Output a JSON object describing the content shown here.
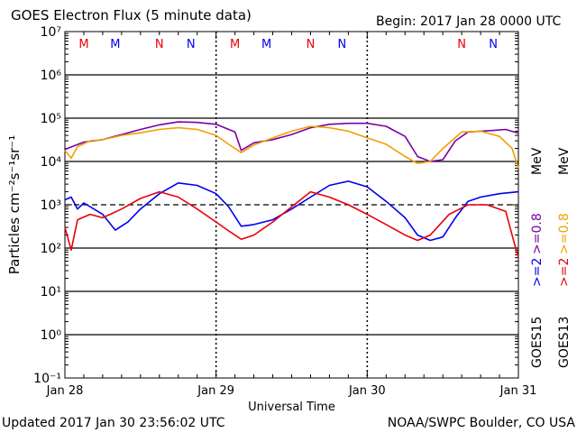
{
  "header": {
    "title": "GOES Electron Flux (5 minute data)",
    "begin": "Begin: 2017 Jan 28 0000 UTC"
  },
  "footer": {
    "updated": "Updated 2017 Jan 30 23:56:02 UTC",
    "source": "NOAA/SWPC Boulder, CO USA"
  },
  "chart_data": {
    "type": "line",
    "title": "GOES Electron Flux (5 minute data)",
    "xlabel": "Universal Time",
    "ylabel": "Particles cm⁻²s⁻¹sr⁻¹",
    "yscale": "log",
    "ylim": [
      0.1,
      10000000
    ],
    "y_ticks": [
      {
        "value": 10000000,
        "label": "10⁷"
      },
      {
        "value": 1000000,
        "label": "10⁶"
      },
      {
        "value": 100000,
        "label": "10⁵"
      },
      {
        "value": 10000,
        "label": "10⁴"
      },
      {
        "value": 1000,
        "label": "10³"
      },
      {
        "value": 100,
        "label": "10²"
      },
      {
        "value": 10,
        "label": "10¹"
      },
      {
        "value": 1,
        "label": "10⁰"
      },
      {
        "value": 0.1,
        "label": "10⁻¹"
      }
    ],
    "xlim": [
      "2017-01-28 00:00",
      "2017-01-31 00:00"
    ],
    "x_ticks": [
      "Jan 28",
      "Jan 29",
      "Jan 30",
      "Jan 31"
    ],
    "hlines": [
      {
        "value": 100000,
        "style": "solid"
      },
      {
        "value": 10000,
        "style": "solid"
      },
      {
        "value": 1000,
        "style": "dashed"
      },
      {
        "value": 100,
        "style": "solid"
      },
      {
        "value": 10,
        "style": "solid"
      },
      {
        "value": 1,
        "style": "solid"
      },
      {
        "value": 1000000,
        "style": "solid"
      }
    ],
    "grid": "dotted vertical at day boundaries",
    "markers": [
      {
        "label": "M",
        "time": "2017-01-28 03:00",
        "color": "#e8000b"
      },
      {
        "label": "M",
        "time": "2017-01-28 08:00",
        "color": "#0000ee"
      },
      {
        "label": "N",
        "time": "2017-01-28 15:00",
        "color": "#e8000b"
      },
      {
        "label": "N",
        "time": "2017-01-28 20:00",
        "color": "#0000ee"
      },
      {
        "label": "M",
        "time": "2017-01-29 03:00",
        "color": "#e8000b"
      },
      {
        "label": "M",
        "time": "2017-01-29 08:00",
        "color": "#0000ee"
      },
      {
        "label": "N",
        "time": "2017-01-29 15:00",
        "color": "#e8000b"
      },
      {
        "label": "N",
        "time": "2017-01-29 20:00",
        "color": "#0000ee"
      },
      {
        "label": "N",
        "time": "2017-01-30 15:00",
        "color": "#e8000b"
      },
      {
        "label": "N",
        "time": "2017-01-30 20:00",
        "color": "#0000ee"
      }
    ],
    "legend": {
      "placement": "right",
      "energy_unit": "MeV",
      "groups": [
        {
          "satellite": "GOES15",
          "color": "#000000",
          "items": [
            {
              "text": ">=2",
              "color": "#0000ee"
            },
            {
              "text": ">=0.8",
              "color": "#7a00a8"
            }
          ]
        },
        {
          "satellite": "GOES13",
          "color": "#000000",
          "items": [
            {
              "text": ">=2",
              "color": "#e8000b"
            },
            {
              "text": ">=0.8",
              "color": "#f0a000"
            }
          ]
        }
      ]
    },
    "series": [
      {
        "name": "GOES15 >=0.8 MeV",
        "color": "#7a00a8",
        "points": [
          [
            "2017-01-28 00:00",
            19000
          ],
          [
            "2017-01-28 03:00",
            28000
          ],
          [
            "2017-01-28 06:00",
            32000
          ],
          [
            "2017-01-28 09:00",
            42000
          ],
          [
            "2017-01-28 12:00",
            55000
          ],
          [
            "2017-01-28 15:00",
            70000
          ],
          [
            "2017-01-28 18:00",
            82000
          ],
          [
            "2017-01-28 21:00",
            80000
          ],
          [
            "2017-01-29 00:00",
            72000
          ],
          [
            "2017-01-29 03:00",
            48000
          ],
          [
            "2017-01-29 04:00",
            18000
          ],
          [
            "2017-01-29 06:00",
            27000
          ],
          [
            "2017-01-29 09:00",
            32000
          ],
          [
            "2017-01-29 12:00",
            42000
          ],
          [
            "2017-01-29 15:00",
            60000
          ],
          [
            "2017-01-29 18:00",
            72000
          ],
          [
            "2017-01-29 21:00",
            76000
          ],
          [
            "2017-01-30 00:00",
            76000
          ],
          [
            "2017-01-30 03:00",
            65000
          ],
          [
            "2017-01-30 06:00",
            38000
          ],
          [
            "2017-01-30 08:00",
            13000
          ],
          [
            "2017-01-30 10:00",
            10000
          ],
          [
            "2017-01-30 12:00",
            11000
          ],
          [
            "2017-01-30 14:00",
            30000
          ],
          [
            "2017-01-30 16:00",
            48000
          ],
          [
            "2017-01-30 18:00",
            50000
          ],
          [
            "2017-01-30 20:00",
            52000
          ],
          [
            "2017-01-30 22:00",
            55000
          ],
          [
            "2017-01-31 00:00",
            45000
          ]
        ]
      },
      {
        "name": "GOES13 >=0.8 MeV",
        "color": "#f0a000",
        "points": [
          [
            "2017-01-28 00:00",
            18000
          ],
          [
            "2017-01-28 01:00",
            12000
          ],
          [
            "2017-01-28 02:00",
            22000
          ],
          [
            "2017-01-28 04:00",
            30000
          ],
          [
            "2017-01-28 06:00",
            32000
          ],
          [
            "2017-01-28 09:00",
            40000
          ],
          [
            "2017-01-28 12:00",
            46000
          ],
          [
            "2017-01-28 15:00",
            55000
          ],
          [
            "2017-01-28 18:00",
            60000
          ],
          [
            "2017-01-28 21:00",
            55000
          ],
          [
            "2017-01-29 00:00",
            40000
          ],
          [
            "2017-01-29 02:00",
            25000
          ],
          [
            "2017-01-29 04:00",
            16000
          ],
          [
            "2017-01-29 06:00",
            24000
          ],
          [
            "2017-01-29 09:00",
            35000
          ],
          [
            "2017-01-29 12:00",
            50000
          ],
          [
            "2017-01-29 15:00",
            65000
          ],
          [
            "2017-01-29 18:00",
            60000
          ],
          [
            "2017-01-29 21:00",
            50000
          ],
          [
            "2017-01-30 00:00",
            35000
          ],
          [
            "2017-01-30 03:00",
            25000
          ],
          [
            "2017-01-30 06:00",
            13000
          ],
          [
            "2017-01-30 08:00",
            9000
          ],
          [
            "2017-01-30 10:00",
            10000
          ],
          [
            "2017-01-30 12:00",
            20000
          ],
          [
            "2017-01-30 15:00",
            48000
          ],
          [
            "2017-01-30 18:00",
            50000
          ],
          [
            "2017-01-30 21:00",
            38000
          ],
          [
            "2017-01-30 23:00",
            20000
          ],
          [
            "2017-01-31 00:00",
            7000
          ]
        ]
      },
      {
        "name": "GOES15 >=2 MeV",
        "color": "#0000ee",
        "points": [
          [
            "2017-01-28 00:00",
            1300
          ],
          [
            "2017-01-28 01:00",
            1500
          ],
          [
            "2017-01-28 02:00",
            800
          ],
          [
            "2017-01-28 03:00",
            1100
          ],
          [
            "2017-01-28 06:00",
            600
          ],
          [
            "2017-01-28 08:00",
            260
          ],
          [
            "2017-01-28 10:00",
            400
          ],
          [
            "2017-01-28 12:00",
            800
          ],
          [
            "2017-01-28 15:00",
            1800
          ],
          [
            "2017-01-28 18:00",
            3200
          ],
          [
            "2017-01-28 21:00",
            2800
          ],
          [
            "2017-01-29 00:00",
            1800
          ],
          [
            "2017-01-29 02:00",
            900
          ],
          [
            "2017-01-29 04:00",
            320
          ],
          [
            "2017-01-29 06:00",
            350
          ],
          [
            "2017-01-29 09:00",
            450
          ],
          [
            "2017-01-29 12:00",
            800
          ],
          [
            "2017-01-29 15:00",
            1500
          ],
          [
            "2017-01-29 18:00",
            2800
          ],
          [
            "2017-01-29 21:00",
            3500
          ],
          [
            "2017-01-30 00:00",
            2600
          ],
          [
            "2017-01-30 03:00",
            1200
          ],
          [
            "2017-01-30 06:00",
            500
          ],
          [
            "2017-01-30 08:00",
            200
          ],
          [
            "2017-01-30 10:00",
            150
          ],
          [
            "2017-01-30 12:00",
            180
          ],
          [
            "2017-01-30 14:00",
            500
          ],
          [
            "2017-01-30 16:00",
            1200
          ],
          [
            "2017-01-30 18:00",
            1500
          ],
          [
            "2017-01-30 21:00",
            1800
          ],
          [
            "2017-01-31 00:00",
            2000
          ]
        ]
      },
      {
        "name": "GOES13 >=2 MeV",
        "color": "#e8000b",
        "points": [
          [
            "2017-01-28 00:00",
            300
          ],
          [
            "2017-01-28 01:00",
            90
          ],
          [
            "2017-01-28 02:00",
            450
          ],
          [
            "2017-01-28 04:00",
            600
          ],
          [
            "2017-01-28 06:00",
            500
          ],
          [
            "2017-01-28 09:00",
            800
          ],
          [
            "2017-01-28 12:00",
            1400
          ],
          [
            "2017-01-28 15:00",
            2000
          ],
          [
            "2017-01-28 18:00",
            1500
          ],
          [
            "2017-01-28 21:00",
            800
          ],
          [
            "2017-01-29 00:00",
            400
          ],
          [
            "2017-01-29 02:00",
            250
          ],
          [
            "2017-01-29 04:00",
            160
          ],
          [
            "2017-01-29 06:00",
            200
          ],
          [
            "2017-01-29 09:00",
            400
          ],
          [
            "2017-01-29 12:00",
            900
          ],
          [
            "2017-01-29 15:00",
            2000
          ],
          [
            "2017-01-29 18:00",
            1500
          ],
          [
            "2017-01-29 21:00",
            1000
          ],
          [
            "2017-01-30 00:00",
            600
          ],
          [
            "2017-01-30 03:00",
            350
          ],
          [
            "2017-01-30 06:00",
            200
          ],
          [
            "2017-01-30 08:00",
            150
          ],
          [
            "2017-01-30 10:00",
            200
          ],
          [
            "2017-01-30 13:00",
            600
          ],
          [
            "2017-01-30 16:00",
            1000
          ],
          [
            "2017-01-30 19:00",
            1000
          ],
          [
            "2017-01-30 22:00",
            700
          ],
          [
            "2017-01-30 23:00",
            200
          ],
          [
            "2017-01-31 00:00",
            60
          ]
        ]
      }
    ]
  }
}
